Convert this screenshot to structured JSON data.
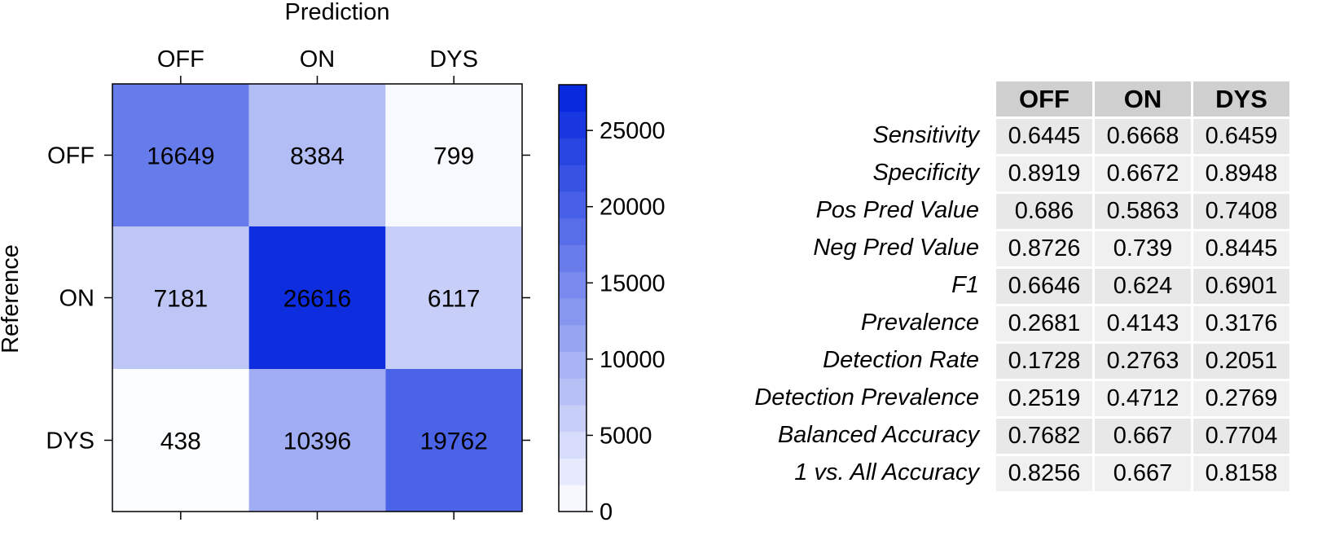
{
  "chart_data": [
    {
      "type": "heatmap",
      "title": "Prediction",
      "xlabel": "Prediction",
      "ylabel": "Reference",
      "x_categories": [
        "OFF",
        "ON",
        "DYS"
      ],
      "y_categories": [
        "OFF",
        "ON",
        "DYS"
      ],
      "values": [
        [
          16649,
          8384,
          799
        ],
        [
          7181,
          26616,
          6117
        ],
        [
          438,
          10396,
          19762
        ]
      ],
      "colorbar": {
        "min": 0,
        "max": 28000,
        "ticks": [
          0,
          5000,
          10000,
          15000,
          20000,
          25000
        ],
        "color_low": "#ffffff",
        "color_high": "#0022dd"
      }
    },
    {
      "type": "table",
      "columns": [
        "OFF",
        "ON",
        "DYS"
      ],
      "rows": [
        {
          "label": "Sensitivity",
          "values": [
            "0.6445",
            "0.6668",
            "0.6459"
          ]
        },
        {
          "label": "Specificity",
          "values": [
            "0.8919",
            "0.6672",
            "0.8948"
          ]
        },
        {
          "label": "Pos Pred Value",
          "values": [
            "0.686",
            "0.5863",
            "0.7408"
          ]
        },
        {
          "label": "Neg Pred Value",
          "values": [
            "0.8726",
            "0.739",
            "0.8445"
          ]
        },
        {
          "label": "F1",
          "values": [
            "0.6646",
            "0.624",
            "0.6901"
          ]
        },
        {
          "label": "Prevalence",
          "values": [
            "0.2681",
            "0.4143",
            "0.3176"
          ]
        },
        {
          "label": "Detection Rate",
          "values": [
            "0.1728",
            "0.2763",
            "0.2051"
          ]
        },
        {
          "label": "Detection Prevalence",
          "values": [
            "0.2519",
            "0.4712",
            "0.2769"
          ]
        },
        {
          "label": "Balanced Accuracy",
          "values": [
            "0.7682",
            "0.667",
            "0.7704"
          ]
        },
        {
          "label": "1 vs. All Accuracy",
          "values": [
            "0.8256",
            "0.667",
            "0.8158"
          ]
        }
      ]
    }
  ]
}
